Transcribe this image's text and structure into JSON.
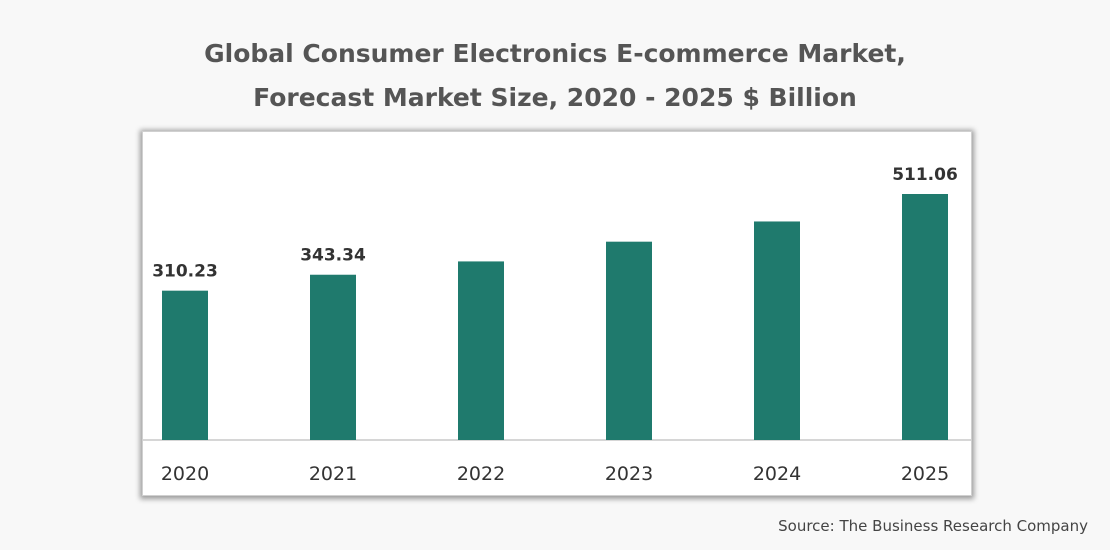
{
  "title_line1": "Global Consumer Electronics E-commerce Market,",
  "title_line2": "Forecast Market Size, 2020 - 2025 $ Billion",
  "source": "Source: The Business Research Company",
  "colors": {
    "bar": "#1f7a6d",
    "axis": "#c8c8c8",
    "label": "#333333"
  },
  "chart_data": {
    "type": "bar",
    "title": "Global Consumer Electronics E-commerce Market, Forecast Market Size, 2020 - 2025 $ Billion",
    "xlabel": "",
    "ylabel": "",
    "categories": [
      "2020",
      "2021",
      "2022",
      "2023",
      "2024",
      "2025"
    ],
    "values": [
      310.23,
      343.34,
      371.0,
      412.0,
      454.0,
      511.06
    ],
    "data_labels": [
      "310.23",
      "343.34",
      "",
      "",
      "",
      "511.06"
    ],
    "ylim": [
      0,
      511.06
    ],
    "grid": false,
    "legend": "none"
  }
}
